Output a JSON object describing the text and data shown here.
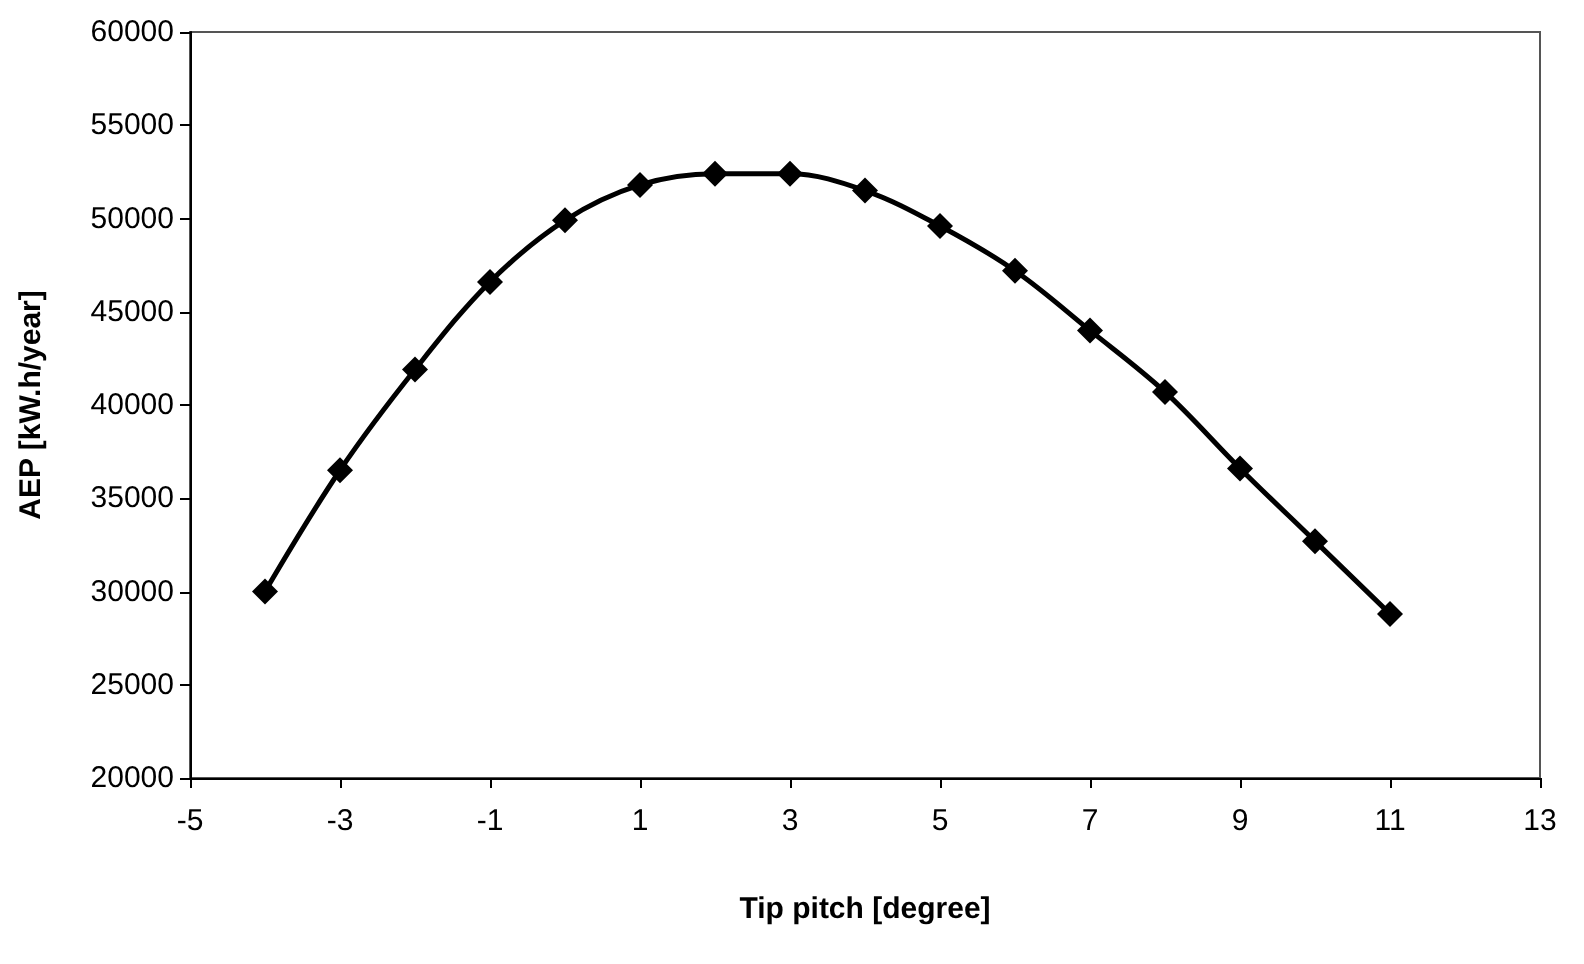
{
  "chart_data": {
    "type": "line",
    "xlabel": "Tip pitch [degree]",
    "ylabel": "AEP [kW.h/year]",
    "x": [
      -4,
      -3,
      -2,
      -1,
      0,
      1,
      2,
      3,
      4,
      5,
      6,
      7,
      8,
      9,
      10,
      11
    ],
    "series": [
      {
        "color": "#000000",
        "values": [
          30000,
          36500,
          41900,
          46600,
          49900,
          51800,
          52400,
          52400,
          51500,
          49600,
          47200,
          44000,
          40700,
          36600,
          32700,
          28800
        ]
      }
    ],
    "xlim": [
      -5,
      13
    ],
    "xticks": [
      -5,
      -3,
      -1,
      1,
      3,
      5,
      7,
      9,
      11,
      13
    ],
    "ylim": [
      20000,
      60000
    ],
    "yticks": [
      20000,
      25000,
      30000,
      35000,
      40000,
      45000,
      50000,
      55000,
      60000
    ],
    "marker": "diamond",
    "line_style": "solid"
  }
}
